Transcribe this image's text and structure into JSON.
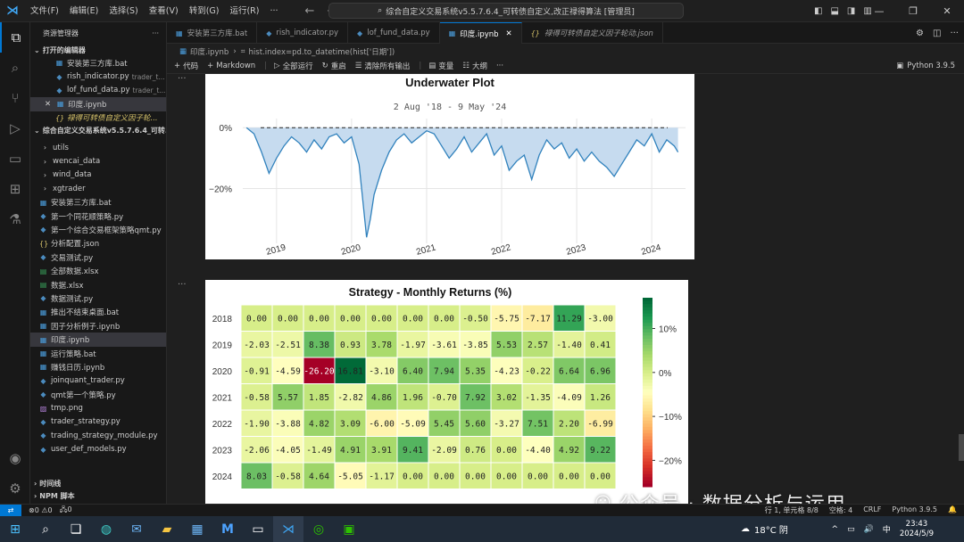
{
  "titlebar": {
    "menu": [
      "文件(F)",
      "编辑(E)",
      "选择(S)",
      "查看(V)",
      "转到(G)",
      "运行(R)",
      "···"
    ],
    "command_center": "综合自定义交易系统v5.5.7.6.4_可转债自定义,改正禄得算法 [管理员]"
  },
  "sidebar": {
    "title": "资源管理器",
    "open_editors_label": "打开的编辑器",
    "open_editors": [
      {
        "icon": "▦",
        "name": "安装第三方库.bat",
        "hint": ""
      },
      {
        "icon": "◆",
        "name": "rish_indicator.py",
        "hint": "trader_t..."
      },
      {
        "icon": "◆",
        "name": "lof_fund_data.py",
        "hint": "trader_t..."
      },
      {
        "icon": "▦",
        "name": "印度.ipynb",
        "hint": "",
        "close": "✕"
      },
      {
        "icon": "{}",
        "name": "禄得可转债自定义因子轮...",
        "hint": ""
      }
    ],
    "project_label": "综合自定义交易系统v5.5.7.6.4_可转...",
    "folders": [
      "utils",
      "wencai_data",
      "wind_data",
      "xgtrader"
    ],
    "files": [
      "安装第三方库.bat",
      "第一个同花顺策略.py",
      "第一个综合交易框架策略qmt.py",
      "分析配置.json",
      "交易测试.py",
      "全部数据.xlsx",
      "数据.xlsx",
      "数据测试.py",
      "推出不结束桌面.bat",
      "因子分析例子.ipynb",
      "印度.ipynb",
      "运行策略.bat",
      "赚钱日历.ipynb",
      "joinquant_trader.py",
      "qmt第一个策略.py",
      "tmp.png",
      "trader_strategy.py",
      "trading_strategy_module.py",
      "user_def_models.py"
    ],
    "bottom_sections": [
      "时间线",
      "NPM 脚本"
    ]
  },
  "tabs": [
    {
      "icon": "▦",
      "label": "安装第三方库.bat"
    },
    {
      "icon": "◆",
      "label": "rish_indicator.py"
    },
    {
      "icon": "◆",
      "label": "lof_fund_data.py"
    },
    {
      "icon": "▦",
      "label": "印度.ipynb",
      "close": "✕"
    },
    {
      "icon": "{}",
      "label": "禄得可转债自定义因子轮动.json"
    }
  ],
  "breadcrumb": {
    "file": "印度.ipynb",
    "sep": "›",
    "cell": "hist.index=pd.to_datetime(hist['日期'])"
  },
  "toolbar": {
    "code": "代码",
    "markdown": "Markdown",
    "run_all": "全部运行",
    "restart": "重启",
    "clear": "清除所有输出",
    "variables": "变量",
    "outline": "大纲",
    "more": "···",
    "kernel": "Python 3.9.5"
  },
  "underwater_chart": {
    "chart_data": {
      "type": "area",
      "title": "Underwater Plot",
      "subtitle": "2 Aug '18 - 9 May '24",
      "x_tick_labels": [
        "2019",
        "2020",
        "2021",
        "2022",
        "2023",
        "2024"
      ],
      "y_tick_labels": [
        "0%",
        "−20%"
      ],
      "ylim": [
        -38,
        3
      ],
      "series": [
        {
          "x": [
            2018.6,
            2018.7,
            2018.8,
            2018.9,
            2019.0,
            2019.1,
            2019.2,
            2019.3,
            2019.4,
            2019.5,
            2019.6,
            2019.7,
            2019.8,
            2019.9,
            2020.0,
            2020.1,
            2020.15,
            2020.2,
            2020.25,
            2020.3,
            2020.4,
            2020.5,
            2020.6,
            2020.7,
            2020.8,
            2020.9,
            2021.0,
            2021.1,
            2021.2,
            2021.3,
            2021.4,
            2021.5,
            2021.6,
            2021.7,
            2021.8,
            2021.9,
            2022.0,
            2022.1,
            2022.2,
            2022.3,
            2022.4,
            2022.5,
            2022.6,
            2022.7,
            2022.8,
            2022.9,
            2023.0,
            2023.1,
            2023.2,
            2023.3,
            2023.4,
            2023.5,
            2023.6,
            2023.7,
            2023.8,
            2023.9,
            2024.0,
            2024.1,
            2024.2,
            2024.3,
            2024.35
          ],
          "values": [
            0,
            -2,
            -8,
            -15,
            -10,
            -6,
            -3,
            -5,
            -8,
            -4,
            -7,
            -3,
            -2,
            -5,
            -3,
            -12,
            -24,
            -36,
            -30,
            -22,
            -14,
            -8,
            -4,
            -2,
            -5,
            -3,
            -1,
            -2,
            -6,
            -10,
            -7,
            -3,
            -8,
            -5,
            -2,
            -9,
            -6,
            -14,
            -11,
            -9,
            -17,
            -9,
            -4,
            -7,
            -5,
            -10,
            -7,
            -11,
            -8,
            -11,
            -13,
            -16,
            -12,
            -8,
            -4,
            -6,
            -2,
            -8,
            -4,
            -6,
            -8
          ]
        }
      ],
      "grid": true,
      "fill_color": "#c6dbef",
      "line_color": "#3182bd"
    }
  },
  "monthly_returns": {
    "chart_data": {
      "type": "heatmap",
      "title": "Strategy - Monthly Returns (%)",
      "y_categories": [
        "2018",
        "2019",
        "2020",
        "2021",
        "2022",
        "2023",
        "2024"
      ],
      "values": [
        [
          "0.00",
          "0.00",
          "0.00",
          "0.00",
          "0.00",
          "0.00",
          "0.00",
          "-0.50",
          "-5.75",
          "-7.17",
          "11.29",
          "-3.00"
        ],
        [
          "-2.03",
          "-2.51",
          "8.38",
          "0.93",
          "3.78",
          "-1.97",
          "-3.61",
          "-3.85",
          "5.53",
          "2.57",
          "-1.40",
          "0.41"
        ],
        [
          "-0.91",
          "-4.59",
          "-26.20",
          "16.81",
          "-3.10",
          "6.40",
          "7.94",
          "5.35",
          "-4.23",
          "-0.22",
          "6.64",
          "6.96"
        ],
        [
          "-0.58",
          "5.57",
          "1.85",
          "-2.82",
          "4.86",
          "1.96",
          "-0.70",
          "7.92",
          "3.02",
          "-1.35",
          "-4.09",
          "1.26"
        ],
        [
          "-1.90",
          "-3.88",
          "4.82",
          "3.09",
          "-6.00",
          "-5.09",
          "5.45",
          "5.60",
          "-3.27",
          "7.51",
          "2.20",
          "-6.99"
        ],
        [
          "-2.06",
          "-4.05",
          "-1.49",
          "4.91",
          "3.91",
          "9.41",
          "-2.09",
          "0.76",
          "0.00",
          "-4.40",
          "4.92",
          "9.22"
        ],
        [
          "8.03",
          "-0.58",
          "4.64",
          "-5.05",
          "-1.17",
          "0.00",
          "0.00",
          "0.00",
          "0.00",
          "0.00",
          "0.00",
          "0.00"
        ]
      ],
      "colorbar_ticks": [
        "10%",
        "0%",
        "−10%",
        "−20%"
      ],
      "colorbar_values": [
        10,
        0,
        -10,
        -20
      ],
      "vmin": -26,
      "vmax": 17,
      "cmap": "RdYlGn"
    }
  },
  "watermark": {
    "text": "公众号 · 数据分析与运用"
  },
  "statusbar": {
    "errors": "⊗0 ⚠0",
    "ports": "🖧0",
    "right": [
      "行 1, 单元格 8/8",
      "空格: 4",
      "CRLF",
      "Python 3.9.5"
    ]
  },
  "taskbar": {
    "weather": "18°C 阴",
    "time": "23:43",
    "date": "2024/5/9",
    "ime": "中"
  },
  "colors": {
    "accent": "#0078d4",
    "editor_bg": "#1f1f1f",
    "sidebar_bg": "#181818"
  }
}
